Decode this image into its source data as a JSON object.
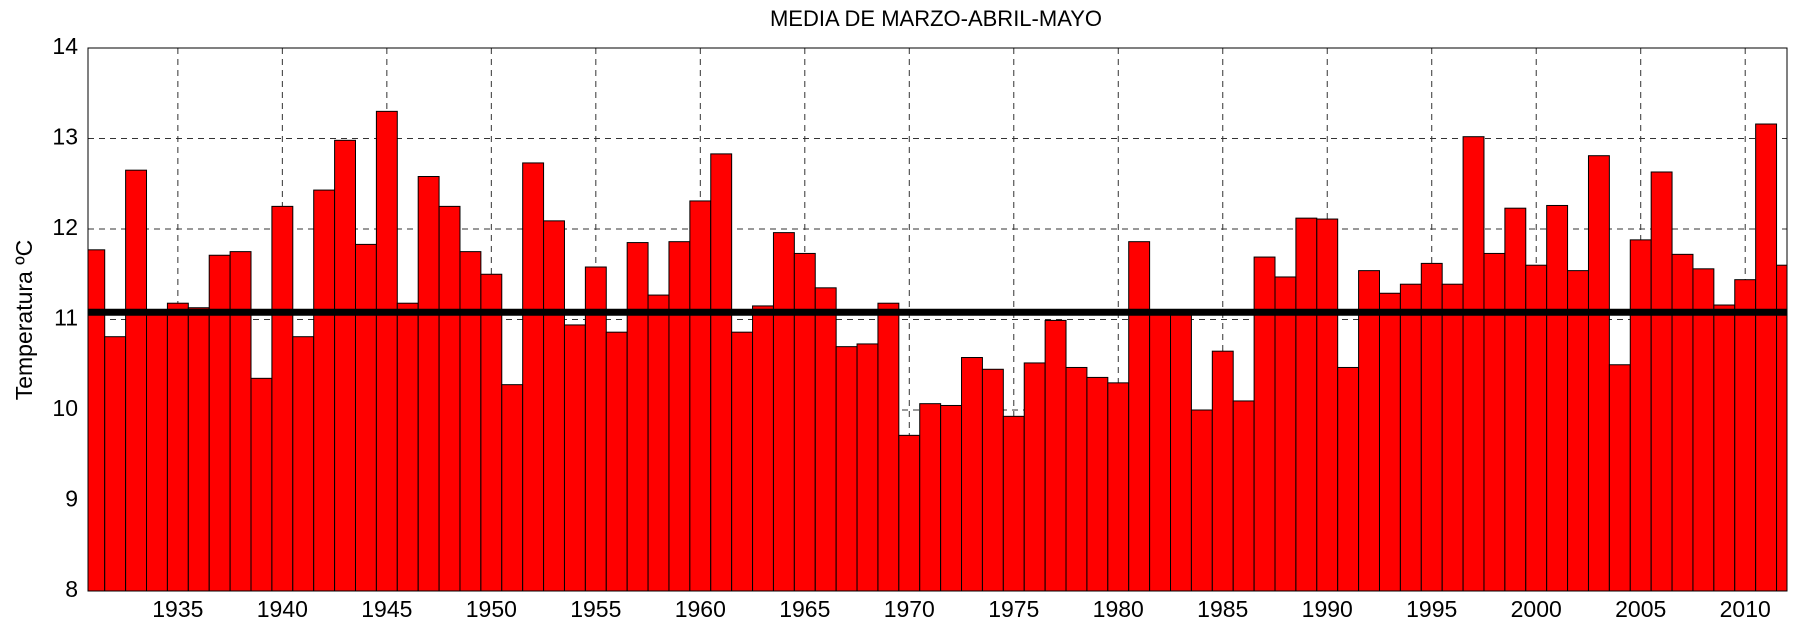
{
  "chart_data": {
    "type": "bar",
    "title": "MEDIA DE MARZO-ABRIL-MAYO",
    "y_label": "Temperatura ºC",
    "x": [
      1931,
      1932,
      1933,
      1934,
      1935,
      1936,
      1937,
      1938,
      1939,
      1940,
      1941,
      1942,
      1943,
      1944,
      1945,
      1946,
      1947,
      1948,
      1949,
      1950,
      1951,
      1952,
      1953,
      1954,
      1955,
      1956,
      1957,
      1958,
      1959,
      1960,
      1961,
      1962,
      1963,
      1964,
      1965,
      1966,
      1967,
      1968,
      1969,
      1970,
      1971,
      1972,
      1973,
      1974,
      1975,
      1976,
      1977,
      1978,
      1979,
      1980,
      1981,
      1982,
      1983,
      1984,
      1985,
      1986,
      1987,
      1988,
      1989,
      1990,
      1991,
      1992,
      1993,
      1994,
      1995,
      1996,
      1997,
      1998,
      1999,
      2000,
      2001,
      2002,
      2003,
      2004,
      2005,
      2006,
      2007,
      2008,
      2009,
      2010,
      2011,
      2012
    ],
    "values": [
      11.77,
      10.81,
      12.65,
      11.1,
      11.18,
      11.13,
      11.71,
      11.75,
      10.35,
      12.25,
      10.81,
      12.43,
      12.98,
      11.83,
      13.3,
      11.18,
      12.58,
      12.25,
      11.75,
      11.5,
      10.28,
      12.73,
      12.09,
      10.94,
      11.58,
      10.86,
      11.85,
      11.27,
      11.86,
      12.31,
      12.83,
      10.86,
      11.15,
      11.96,
      11.73,
      11.35,
      10.7,
      10.73,
      11.18,
      9.72,
      10.07,
      10.05,
      10.58,
      10.45,
      9.93,
      10.52,
      10.99,
      10.47,
      10.36,
      10.3,
      11.86,
      11.07,
      11.05,
      10.0,
      10.65,
      10.1,
      11.69,
      11.47,
      12.12,
      12.11,
      10.47,
      11.54,
      11.29,
      11.39,
      11.62,
      11.39,
      13.02,
      11.73,
      12.23,
      11.6,
      12.26,
      11.54,
      12.81,
      10.5,
      11.88,
      12.63,
      11.72,
      11.56,
      11.16,
      11.44,
      13.16,
      11.6
    ],
    "color": "#ff0000",
    "mean_line": 11.08,
    "mean_color": "#000000",
    "xlim": [
      1930.7,
      2012
    ],
    "xticks": [
      1935,
      1940,
      1945,
      1950,
      1955,
      1960,
      1965,
      1970,
      1975,
      1980,
      1985,
      1990,
      1995,
      2000,
      2005,
      2010
    ],
    "ylim": [
      8,
      14
    ],
    "yticks": [
      8,
      9,
      10,
      11,
      12,
      13,
      14
    ],
    "grid": true
  }
}
